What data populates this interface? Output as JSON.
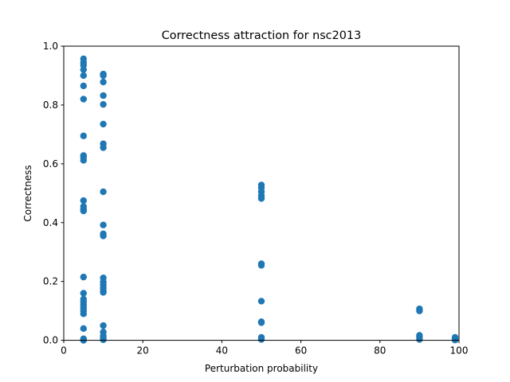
{
  "chart_data": {
    "type": "scatter",
    "title": "Correctness attraction for nsc2013",
    "xlabel": "Perturbation probability",
    "ylabel": "Correctness",
    "xlim": [
      0,
      100
    ],
    "ylim": [
      0,
      1.0
    ],
    "xticks": [
      "0",
      "20",
      "40",
      "60",
      "80",
      "100"
    ],
    "yticks": [
      "0.0",
      "0.2",
      "0.4",
      "0.6",
      "0.8",
      "1.0"
    ],
    "grid": false,
    "legend": "none",
    "color": "#1f77b4",
    "points": [
      {
        "x": 5,
        "y": 0.957
      },
      {
        "x": 5,
        "y": 0.945
      },
      {
        "x": 5,
        "y": 0.935
      },
      {
        "x": 5,
        "y": 0.92
      },
      {
        "x": 5,
        "y": 0.9
      },
      {
        "x": 5,
        "y": 0.865
      },
      {
        "x": 5,
        "y": 0.82
      },
      {
        "x": 5,
        "y": 0.695
      },
      {
        "x": 5,
        "y": 0.628
      },
      {
        "x": 5,
        "y": 0.622
      },
      {
        "x": 5,
        "y": 0.612
      },
      {
        "x": 5,
        "y": 0.475
      },
      {
        "x": 5,
        "y": 0.455
      },
      {
        "x": 5,
        "y": 0.445
      },
      {
        "x": 5,
        "y": 0.44
      },
      {
        "x": 5,
        "y": 0.215
      },
      {
        "x": 5,
        "y": 0.16
      },
      {
        "x": 5,
        "y": 0.14
      },
      {
        "x": 5,
        "y": 0.13
      },
      {
        "x": 5,
        "y": 0.12
      },
      {
        "x": 5,
        "y": 0.11
      },
      {
        "x": 5,
        "y": 0.1
      },
      {
        "x": 5,
        "y": 0.09
      },
      {
        "x": 5,
        "y": 0.04
      },
      {
        "x": 5,
        "y": 0.005
      },
      {
        "x": 5,
        "y": 0.0
      },
      {
        "x": 10,
        "y": 0.905
      },
      {
        "x": 10,
        "y": 0.9
      },
      {
        "x": 10,
        "y": 0.878
      },
      {
        "x": 10,
        "y": 0.832
      },
      {
        "x": 10,
        "y": 0.802
      },
      {
        "x": 10,
        "y": 0.735
      },
      {
        "x": 10,
        "y": 0.668
      },
      {
        "x": 10,
        "y": 0.655
      },
      {
        "x": 10,
        "y": 0.505
      },
      {
        "x": 10,
        "y": 0.392
      },
      {
        "x": 10,
        "y": 0.362
      },
      {
        "x": 10,
        "y": 0.355
      },
      {
        "x": 10,
        "y": 0.212
      },
      {
        "x": 10,
        "y": 0.198
      },
      {
        "x": 10,
        "y": 0.188
      },
      {
        "x": 10,
        "y": 0.178
      },
      {
        "x": 10,
        "y": 0.168
      },
      {
        "x": 10,
        "y": 0.163
      },
      {
        "x": 10,
        "y": 0.05
      },
      {
        "x": 10,
        "y": 0.028
      },
      {
        "x": 10,
        "y": 0.015
      },
      {
        "x": 10,
        "y": 0.008
      },
      {
        "x": 10,
        "y": 0.002
      },
      {
        "x": 50,
        "y": 0.528
      },
      {
        "x": 50,
        "y": 0.518
      },
      {
        "x": 50,
        "y": 0.505
      },
      {
        "x": 50,
        "y": 0.492
      },
      {
        "x": 50,
        "y": 0.482
      },
      {
        "x": 50,
        "y": 0.26
      },
      {
        "x": 50,
        "y": 0.255
      },
      {
        "x": 50,
        "y": 0.133
      },
      {
        "x": 50,
        "y": 0.063
      },
      {
        "x": 50,
        "y": 0.06
      },
      {
        "x": 50,
        "y": 0.01
      },
      {
        "x": 50,
        "y": 0.003
      },
      {
        "x": 90,
        "y": 0.107
      },
      {
        "x": 90,
        "y": 0.1
      },
      {
        "x": 90,
        "y": 0.017
      },
      {
        "x": 90,
        "y": 0.012
      },
      {
        "x": 90,
        "y": 0.003
      },
      {
        "x": 99,
        "y": 0.01
      },
      {
        "x": 99,
        "y": 0.005
      },
      {
        "x": 99,
        "y": 0.001
      }
    ]
  }
}
